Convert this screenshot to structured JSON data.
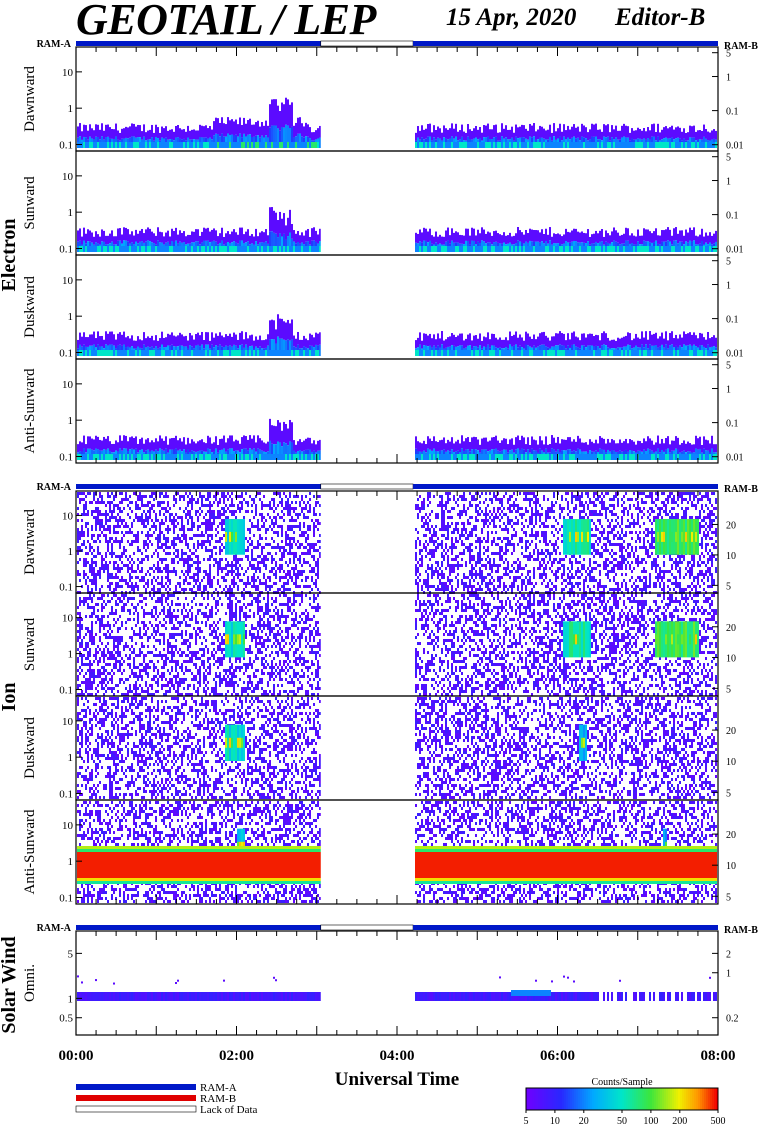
{
  "header": {
    "title": "GEOTAIL / LEP",
    "date": "15 Apr, 2020",
    "editor": "Editor-B"
  },
  "ram_labels": {
    "a": "RAM-A",
    "b": "RAM-B"
  },
  "groups": [
    {
      "name": "Electron",
      "panels": [
        "Dawnward",
        "Sunward",
        "Duskward",
        "Anti-Sunward"
      ]
    },
    {
      "name": "Ion",
      "panels": [
        "Dawnward",
        "Sunward",
        "Duskward",
        "Anti-Sunward"
      ]
    },
    {
      "name": "Solar Wind",
      "panels": [
        "Omni."
      ]
    }
  ],
  "x_axis": {
    "label": "Universal Time",
    "ticks": [
      "00:00",
      "02:00",
      "04:00",
      "06:00",
      "08:00"
    ],
    "range_hours": [
      0,
      8
    ]
  },
  "legend": {
    "ram_a": "RAM-A",
    "ram_b": "RAM-B",
    "lack": "Lack of Data"
  },
  "colorbar": {
    "title": "Counts/Sample",
    "ticks": [
      "5",
      "10",
      "20",
      "50",
      "100",
      "200",
      "500"
    ]
  },
  "colors": {
    "ram_a": "#0018c8",
    "ram_b": "#e00000",
    "lack": "#ffffff"
  },
  "chart_data": {
    "type": "heatmap",
    "instrument": "GEOTAIL / LEP",
    "date": "15 Apr, 2020",
    "x_unit": "UT hours",
    "data_gap_hours": [
      3.05,
      4.2
    ],
    "ram_mode": [
      {
        "start": 0,
        "end": 3.05,
        "mode": "RAM-A"
      },
      {
        "start": 3.05,
        "end": 4.2,
        "mode": "Lack of Data"
      },
      {
        "start": 4.2,
        "end": 8,
        "mode": "RAM-A"
      }
    ],
    "panels": [
      {
        "group": "Electron",
        "name": "Dawnward",
        "left_ticks": [
          "10",
          "1",
          "0.1"
        ],
        "right_ticks": [
          "5",
          "1",
          "0.1",
          "0.01"
        ],
        "feature": "low-level background, peak near 02:30"
      },
      {
        "group": "Electron",
        "name": "Sunward",
        "left_ticks": [
          "10",
          "1",
          "0.1"
        ],
        "right_ticks": [
          "5",
          "1",
          "0.1",
          "0.01"
        ],
        "feature": "low-level background, peak near 02:30"
      },
      {
        "group": "Electron",
        "name": "Duskward",
        "left_ticks": [
          "10",
          "1",
          "0.1"
        ],
        "right_ticks": [
          "5",
          "1",
          "0.1",
          "0.01"
        ],
        "feature": "low-level background, peak near 02:30"
      },
      {
        "group": "Electron",
        "name": "Anti-Sunward",
        "left_ticks": [
          "10",
          "1",
          "0.1"
        ],
        "right_ticks": [
          "5",
          "1",
          "0.1",
          "0.01"
        ],
        "feature": "low-level background, peak near 02:30"
      },
      {
        "group": "Ion",
        "name": "Dawnward",
        "left_ticks": [
          "10",
          "1",
          "0.1"
        ],
        "right_ticks": [
          "20",
          "10",
          "5"
        ],
        "feature": "bursts near 02:00, 06:05-06:40, 07:20-07:45"
      },
      {
        "group": "Ion",
        "name": "Sunward",
        "left_ticks": [
          "10",
          "1",
          "0.1"
        ],
        "right_ticks": [
          "20",
          "10",
          "5"
        ],
        "feature": "bursts near 02:00, 06:05-06:40, 07:20-07:45"
      },
      {
        "group": "Ion",
        "name": "Duskward",
        "left_ticks": [
          "10",
          "1",
          "0.1"
        ],
        "right_ticks": [
          "20",
          "10",
          "5"
        ],
        "feature": "weak bursts near 02:00 and 06:20"
      },
      {
        "group": "Ion",
        "name": "Anti-Sunward",
        "left_ticks": [
          "10",
          "1",
          "0.1"
        ],
        "right_ticks": [
          "20",
          "10",
          "5"
        ],
        "feature": "intense band (>300 counts) around 1 keV throughout"
      },
      {
        "group": "Solar Wind",
        "name": "Omni.",
        "left_ticks": [
          "5",
          "1",
          "0.5"
        ],
        "right_ticks": [
          "2",
          "1",
          "0.2"
        ],
        "feature": "narrow band near 1 keV"
      }
    ]
  }
}
